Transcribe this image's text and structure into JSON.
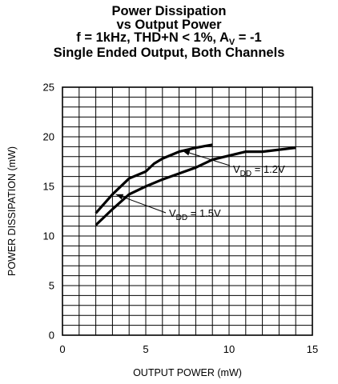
{
  "chart_data": {
    "type": "line",
    "title_lines": [
      "Power Dissipation",
      "vs Output Power",
      {
        "before": "f = 1kHz, THD+N < 1%, A",
        "sub": "V",
        "after": " = -1"
      },
      "Single Ended Output, Both Channels"
    ],
    "xlabel": "OUTPUT POWER (mW)",
    "ylabel": "POWER DISSIPATION (mW)",
    "xlim": [
      0,
      15
    ],
    "ylim": [
      0,
      25
    ],
    "x_ticks": [
      0,
      5,
      10,
      15
    ],
    "y_ticks": [
      0,
      5,
      10,
      15,
      20,
      25
    ],
    "x_grid_step": 1,
    "y_grid_step": 1,
    "grid": true,
    "series": [
      {
        "label_prefix": "V",
        "label_sub": "DD",
        "label_suffix": " = 1.2V",
        "x": [
          2,
          3,
          4,
          5,
          5.5,
          6,
          7,
          8,
          9
        ],
        "y": [
          12.3,
          14.2,
          15.8,
          16.5,
          17.3,
          17.8,
          18.5,
          18.9,
          19.2
        ]
      },
      {
        "label_prefix": "V",
        "label_sub": "DD",
        "label_suffix": " = 1.5V",
        "x": [
          2,
          3,
          4,
          5,
          6,
          7,
          8,
          9,
          10,
          11,
          12,
          13,
          14
        ],
        "y": [
          11.1,
          12.7,
          14.2,
          15,
          15.7,
          16.3,
          16.9,
          17.7,
          18.1,
          18.5,
          18.5,
          18.7,
          18.9
        ]
      }
    ],
    "annotations": [
      {
        "series_index": 0,
        "arrow_to": [
          7.2,
          18.6
        ]
      },
      {
        "series_index": 1,
        "arrow_to": [
          3.2,
          14.2
        ]
      }
    ]
  }
}
